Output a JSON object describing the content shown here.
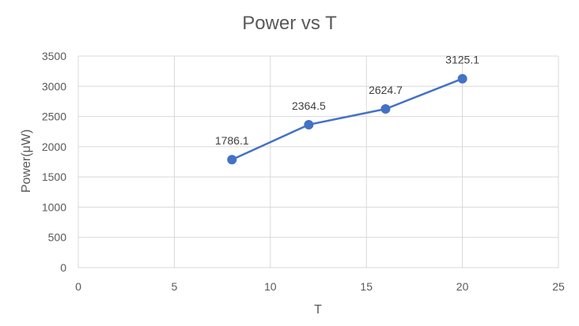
{
  "chart_data": {
    "type": "scatter",
    "title": "Power vs T",
    "xlabel": "T",
    "ylabel": "Power(μW)",
    "xlim": [
      0,
      25
    ],
    "ylim": [
      0,
      3500
    ],
    "xticks": [
      0,
      5,
      10,
      15,
      20,
      25
    ],
    "yticks": [
      0,
      500,
      1000,
      1500,
      2000,
      2500,
      3000,
      3500
    ],
    "grid": true,
    "legend": "none",
    "series": [
      {
        "x": [
          8,
          12,
          16,
          20
        ],
        "y": [
          1786.1,
          2364.5,
          2624.7,
          3125.1
        ],
        "data_labels": [
          "1786.1",
          "2364.5",
          "2624.7",
          "3125.1"
        ],
        "color": "#4472c4",
        "lines": true,
        "markers": true
      }
    ]
  }
}
